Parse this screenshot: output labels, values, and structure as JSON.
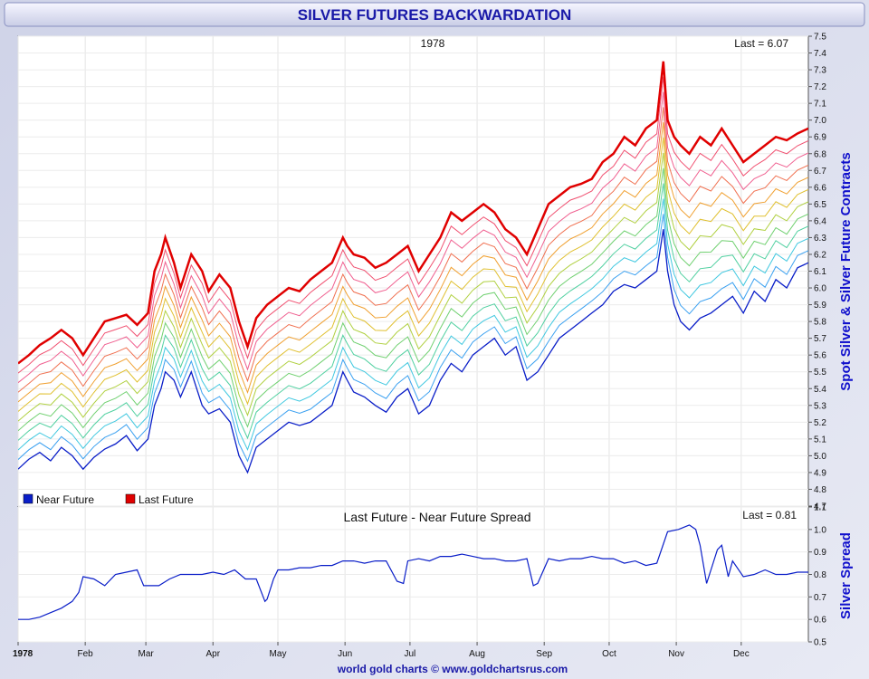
{
  "header": {
    "title": "SILVER FUTURES BACKWARDATION"
  },
  "footer": {
    "credit": "world gold charts © www.goldchartsrus.com"
  },
  "colors": {
    "near": "#0a1ec8",
    "last": "#e00000",
    "title": "#1a1aa8",
    "ylabel": "#1010cc"
  },
  "chart_data": [
    {
      "type": "line",
      "title": "1978",
      "last_label": "Last = 6.07",
      "ylabel": "Spot Silver & Silver Future Contracts",
      "ylim": [
        4.7,
        7.5
      ],
      "yticks": [
        "4.7",
        "4.8",
        "4.9",
        "5.0",
        "5.1",
        "5.2",
        "5.3",
        "5.4",
        "5.5",
        "5.6",
        "5.7",
        "5.8",
        "5.9",
        "6.0",
        "6.1",
        "6.2",
        "6.3",
        "6.4",
        "6.5",
        "6.6",
        "6.7",
        "6.8",
        "6.9",
        "7.0",
        "7.1",
        "7.2",
        "7.3",
        "7.4",
        "7.5"
      ],
      "xlim": [
        0,
        365
      ],
      "legend": {
        "placement": "bottom-left",
        "near_label": "Near Future",
        "last_label": "Last Future"
      },
      "intermediate_contracts": 10,
      "series": [
        {
          "name": "Near Future",
          "x": [
            0,
            5,
            10,
            15,
            20,
            25,
            30,
            35,
            40,
            45,
            50,
            55,
            60,
            63,
            66,
            68,
            72,
            75,
            80,
            85,
            88,
            93,
            98,
            102,
            106,
            110,
            115,
            120,
            125,
            130,
            135,
            140,
            145,
            150,
            152,
            155,
            160,
            165,
            170,
            175,
            180,
            185,
            190,
            195,
            200,
            205,
            210,
            215,
            220,
            225,
            230,
            235,
            240,
            245,
            250,
            255,
            260,
            265,
            270,
            275,
            280,
            285,
            290,
            295,
            298,
            300,
            303,
            306,
            310,
            315,
            320,
            325,
            330,
            335,
            340,
            345,
            350,
            355,
            360,
            365
          ],
          "y": [
            4.92,
            4.98,
            5.02,
            4.97,
            5.05,
            5.0,
            4.92,
            4.99,
            5.04,
            5.07,
            5.12,
            5.03,
            5.1,
            5.3,
            5.4,
            5.5,
            5.45,
            5.35,
            5.5,
            5.3,
            5.25,
            5.28,
            5.2,
            5.0,
            4.9,
            5.05,
            5.1,
            5.15,
            5.2,
            5.18,
            5.2,
            5.25,
            5.3,
            5.5,
            5.45,
            5.38,
            5.35,
            5.3,
            5.26,
            5.35,
            5.4,
            5.25,
            5.3,
            5.45,
            5.55,
            5.5,
            5.6,
            5.65,
            5.7,
            5.6,
            5.65,
            5.45,
            5.5,
            5.6,
            5.7,
            5.75,
            5.8,
            5.85,
            5.9,
            5.98,
            6.02,
            6.0,
            6.05,
            6.1,
            6.35,
            6.1,
            5.9,
            5.8,
            5.75,
            5.82,
            5.85,
            5.9,
            5.95,
            5.85,
            5.98,
            5.92,
            6.05,
            6.0,
            6.12,
            6.15
          ]
        },
        {
          "name": "Last Future",
          "x": [
            0,
            5,
            10,
            15,
            20,
            25,
            30,
            35,
            40,
            45,
            50,
            55,
            60,
            63,
            66,
            68,
            72,
            75,
            80,
            85,
            88,
            93,
            98,
            102,
            106,
            110,
            115,
            120,
            125,
            130,
            135,
            140,
            145,
            150,
            152,
            155,
            160,
            165,
            170,
            175,
            180,
            185,
            190,
            195,
            200,
            205,
            210,
            215,
            220,
            225,
            230,
            235,
            240,
            245,
            250,
            255,
            260,
            265,
            270,
            275,
            280,
            285,
            290,
            295,
            298,
            300,
            303,
            306,
            310,
            315,
            320,
            325,
            330,
            335,
            340,
            345,
            350,
            355,
            360,
            365
          ],
          "y": [
            5.55,
            5.6,
            5.66,
            5.7,
            5.75,
            5.7,
            5.6,
            5.7,
            5.8,
            5.82,
            5.84,
            5.78,
            5.85,
            6.1,
            6.2,
            6.3,
            6.15,
            6.0,
            6.2,
            6.1,
            5.98,
            6.08,
            6.0,
            5.8,
            5.65,
            5.82,
            5.9,
            5.95,
            6.0,
            5.98,
            6.05,
            6.1,
            6.15,
            6.3,
            6.25,
            6.2,
            6.18,
            6.12,
            6.15,
            6.2,
            6.25,
            6.1,
            6.2,
            6.3,
            6.45,
            6.4,
            6.45,
            6.5,
            6.45,
            6.35,
            6.3,
            6.2,
            6.35,
            6.5,
            6.55,
            6.6,
            6.62,
            6.65,
            6.75,
            6.8,
            6.9,
            6.85,
            6.95,
            7.0,
            7.35,
            7.0,
            6.9,
            6.85,
            6.8,
            6.9,
            6.85,
            6.95,
            6.85,
            6.75,
            6.8,
            6.85,
            6.9,
            6.88,
            6.92,
            6.95
          ]
        }
      ]
    },
    {
      "type": "line",
      "title": "Last Future - Near Future Spread",
      "last_label": "Last = 0.81",
      "ylabel": "Silver Spread",
      "ylim": [
        0.5,
        1.1
      ],
      "yticks": [
        "0.5",
        "0.6",
        "0.7",
        "0.8",
        "0.9",
        "1.0",
        "1.1"
      ],
      "xlim": [
        0,
        365
      ],
      "xticks": [
        {
          "x": 0,
          "label": "1978"
        },
        {
          "x": 31,
          "label": "Feb"
        },
        {
          "x": 59,
          "label": "Mar"
        },
        {
          "x": 90,
          "label": "Apr"
        },
        {
          "x": 120,
          "label": "May"
        },
        {
          "x": 151,
          "label": "Jun"
        },
        {
          "x": 181,
          "label": "Jul"
        },
        {
          "x": 212,
          "label": "Aug"
        },
        {
          "x": 243,
          "label": "Sep"
        },
        {
          "x": 273,
          "label": "Oct"
        },
        {
          "x": 304,
          "label": "Nov"
        },
        {
          "x": 334,
          "label": "Dec"
        }
      ],
      "series": [
        {
          "name": "Spread",
          "x": [
            0,
            5,
            10,
            15,
            20,
            25,
            28,
            30,
            35,
            40,
            45,
            50,
            55,
            58,
            60,
            65,
            70,
            75,
            80,
            85,
            90,
            95,
            100,
            105,
            108,
            110,
            114,
            115,
            118,
            120,
            125,
            130,
            135,
            140,
            145,
            150,
            155,
            160,
            165,
            170,
            175,
            178,
            180,
            185,
            190,
            195,
            200,
            205,
            210,
            215,
            220,
            225,
            230,
            235,
            238,
            240,
            245,
            250,
            255,
            260,
            265,
            270,
            275,
            280,
            285,
            290,
            295,
            300,
            305,
            310,
            313,
            315,
            318,
            320,
            323,
            325,
            328,
            330,
            335,
            340,
            345,
            350,
            355,
            360,
            365
          ],
          "y": [
            0.6,
            0.6,
            0.61,
            0.63,
            0.65,
            0.68,
            0.72,
            0.79,
            0.78,
            0.75,
            0.8,
            0.81,
            0.82,
            0.75,
            0.75,
            0.75,
            0.78,
            0.8,
            0.8,
            0.8,
            0.81,
            0.8,
            0.82,
            0.78,
            0.78,
            0.78,
            0.68,
            0.69,
            0.78,
            0.82,
            0.82,
            0.83,
            0.83,
            0.84,
            0.84,
            0.86,
            0.86,
            0.85,
            0.86,
            0.86,
            0.77,
            0.76,
            0.86,
            0.87,
            0.86,
            0.88,
            0.88,
            0.89,
            0.88,
            0.87,
            0.87,
            0.86,
            0.86,
            0.87,
            0.75,
            0.76,
            0.87,
            0.86,
            0.87,
            0.87,
            0.88,
            0.87,
            0.87,
            0.85,
            0.86,
            0.84,
            0.85,
            0.99,
            1.0,
            1.02,
            1.0,
            0.93,
            0.76,
            0.82,
            0.91,
            0.93,
            0.79,
            0.86,
            0.79,
            0.8,
            0.82,
            0.8,
            0.8,
            0.81,
            0.81
          ]
        }
      ]
    }
  ]
}
